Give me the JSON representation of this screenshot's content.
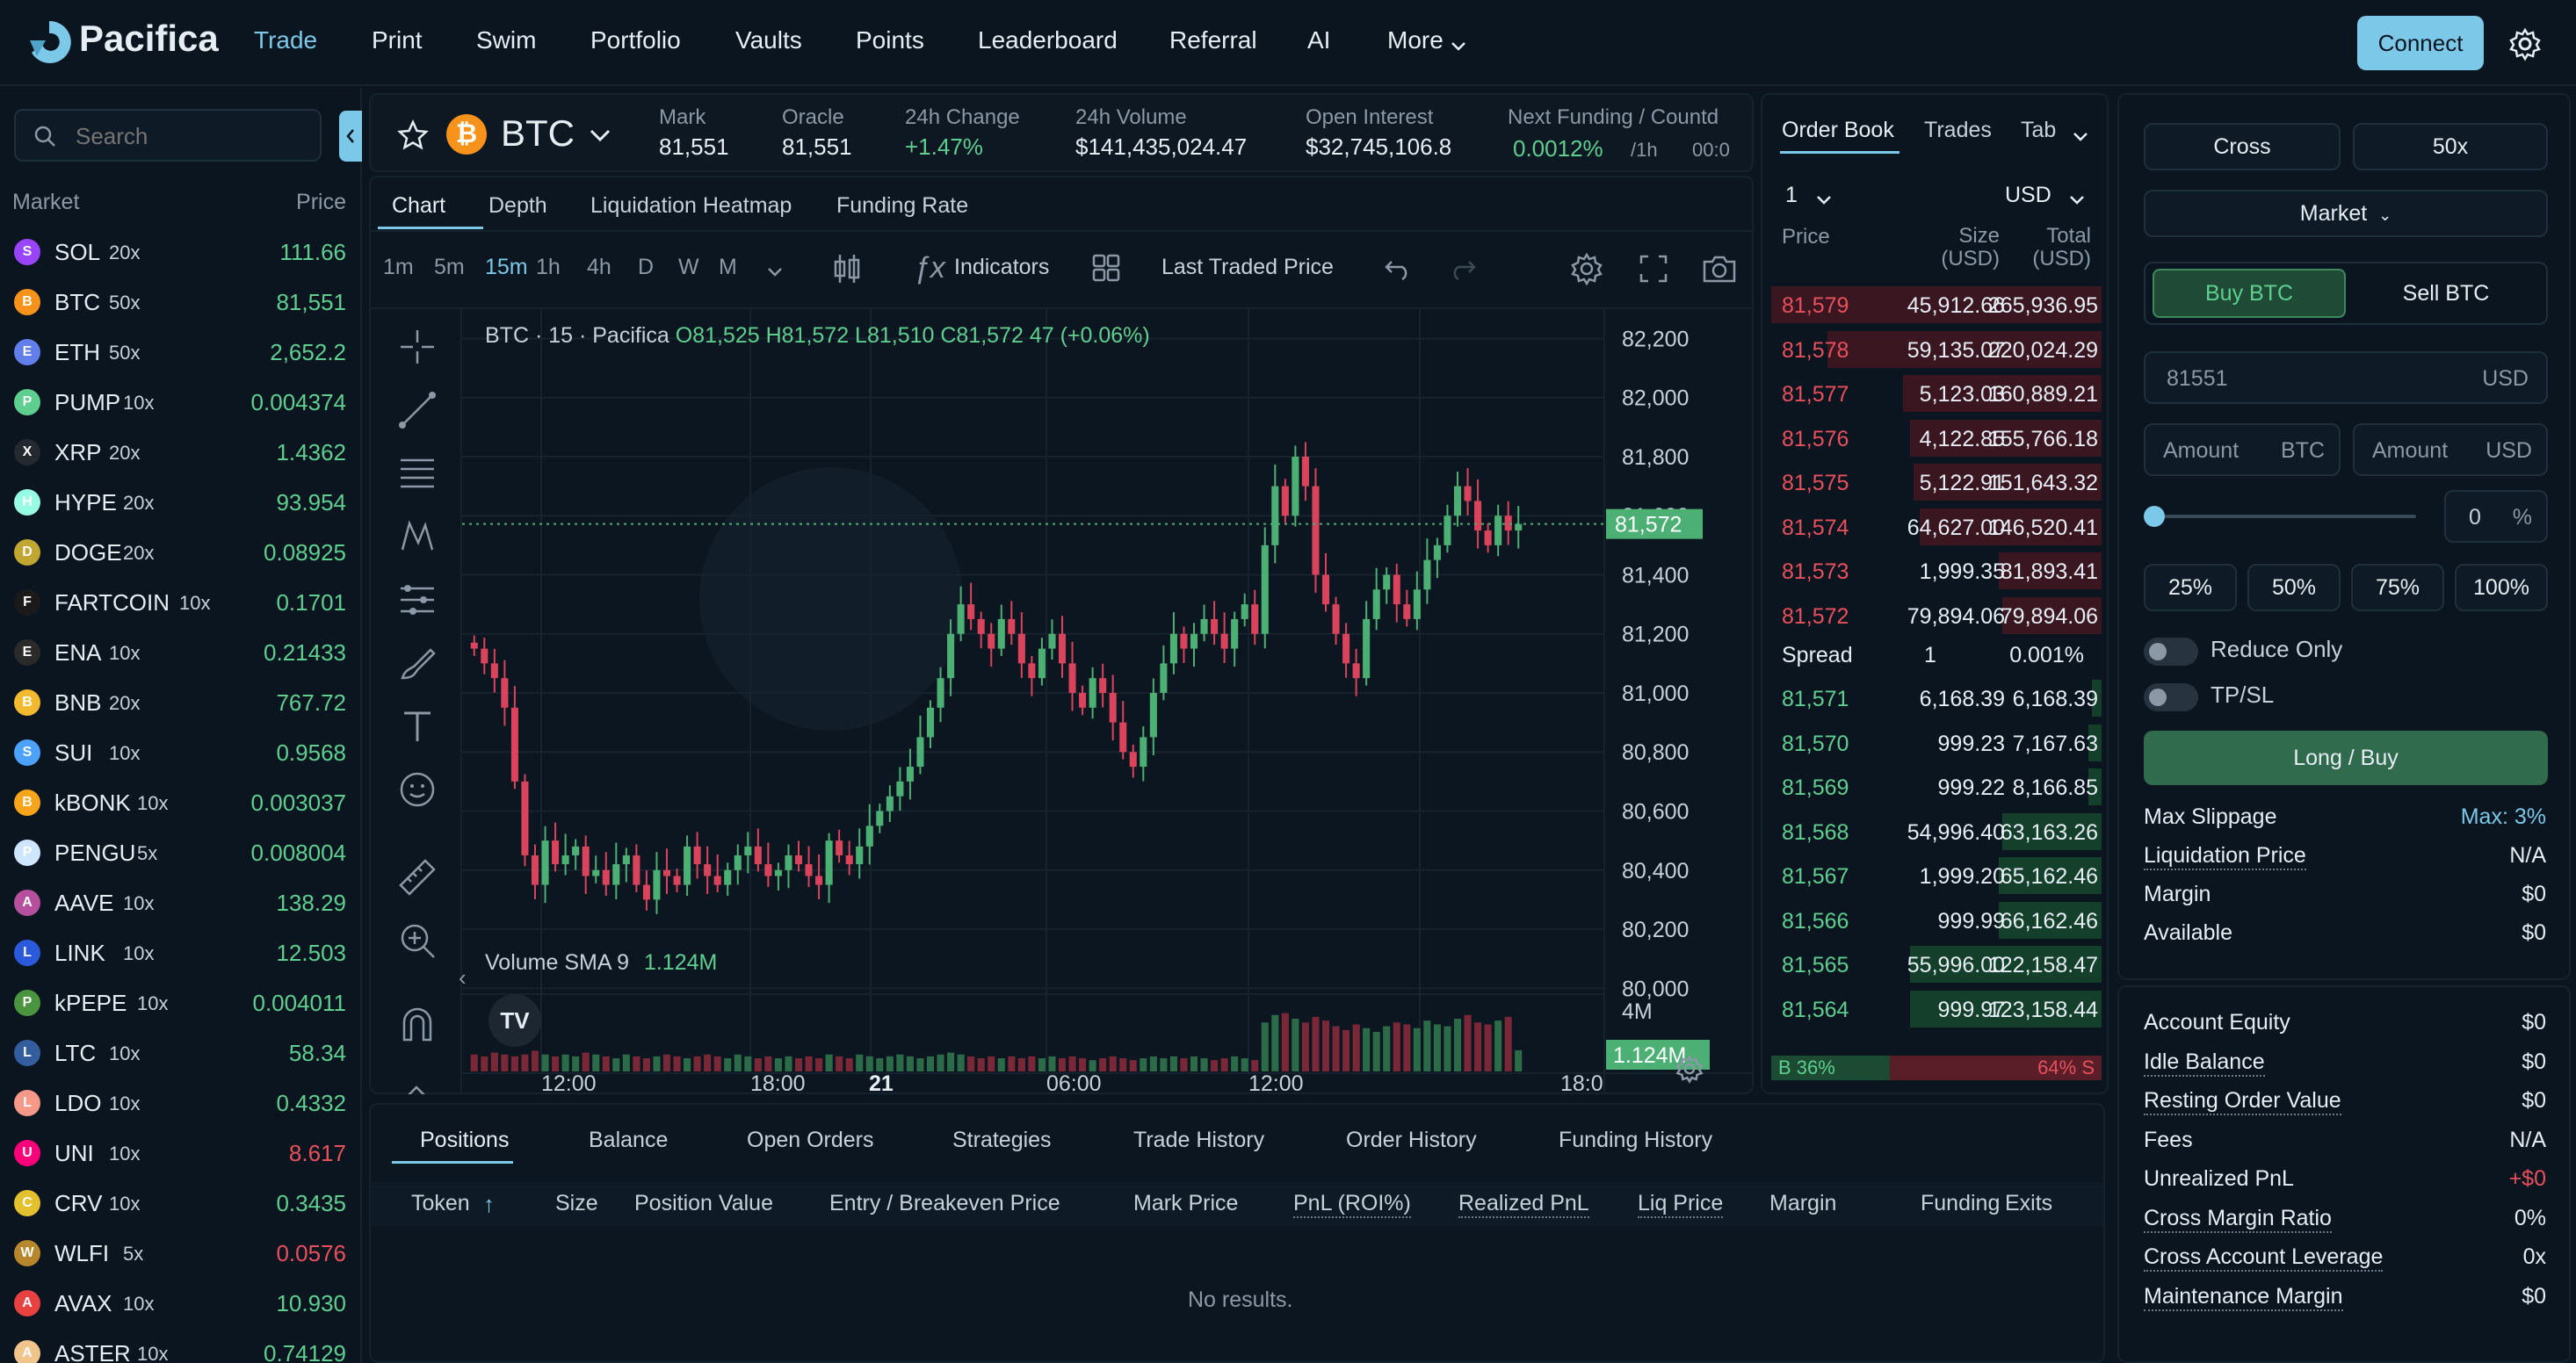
{
  "header": {
    "logo": "Pacifica",
    "nav": [
      "Trade",
      "Print",
      "Swim",
      "Portfolio",
      "Vaults",
      "Points",
      "Leaderboard",
      "Referral",
      "AI",
      "More"
    ],
    "connect_label": "Connect"
  },
  "markets": {
    "search_placeholder": "Search",
    "col_market": "Market",
    "col_price": "Price",
    "rows": [
      {
        "symbol": "SOL",
        "lev": "20x",
        "price": "111.66",
        "up": true,
        "color": "#9945ff"
      },
      {
        "symbol": "BTC",
        "lev": "50x",
        "price": "81,551",
        "up": true,
        "color": "#f7931a"
      },
      {
        "symbol": "ETH",
        "lev": "50x",
        "price": "2,652.2",
        "up": true,
        "color": "#627eea"
      },
      {
        "symbol": "PUMP",
        "lev": "10x",
        "price": "0.004374",
        "up": true,
        "color": "#5fcf8f"
      },
      {
        "symbol": "XRP",
        "lev": "20x",
        "price": "1.4362",
        "up": true,
        "color": "#23292f"
      },
      {
        "symbol": "HYPE",
        "lev": "20x",
        "price": "93.954",
        "up": true,
        "color": "#97fce4"
      },
      {
        "symbol": "DOGE",
        "lev": "20x",
        "price": "0.08925",
        "up": true,
        "color": "#c2a633"
      },
      {
        "symbol": "FARTCOIN",
        "lev": "10x",
        "price": "0.1701",
        "up": true,
        "color": "#1a1a1a"
      },
      {
        "symbol": "ENA",
        "lev": "10x",
        "price": "0.21433",
        "up": true,
        "color": "#2a2a2a"
      },
      {
        "symbol": "BNB",
        "lev": "20x",
        "price": "767.72",
        "up": true,
        "color": "#f3ba2f"
      },
      {
        "symbol": "SUI",
        "lev": "10x",
        "price": "0.9568",
        "up": true,
        "color": "#4da2ff"
      },
      {
        "symbol": "kBONK",
        "lev": "10x",
        "price": "0.003037",
        "up": true,
        "color": "#f8a51c"
      },
      {
        "symbol": "PENGU",
        "lev": "5x",
        "price": "0.008004",
        "up": true,
        "color": "#cfe6ff"
      },
      {
        "symbol": "AAVE",
        "lev": "10x",
        "price": "138.29",
        "up": true,
        "color": "#b6509e"
      },
      {
        "symbol": "LINK",
        "lev": "10x",
        "price": "12.503",
        "up": true,
        "color": "#2a5ada"
      },
      {
        "symbol": "kPEPE",
        "lev": "10x",
        "price": "0.004011",
        "up": true,
        "color": "#4c9540"
      },
      {
        "symbol": "LTC",
        "lev": "10x",
        "price": "58.34",
        "up": true,
        "color": "#345d9d"
      },
      {
        "symbol": "LDO",
        "lev": "10x",
        "price": "0.4332",
        "up": true,
        "color": "#f69988"
      },
      {
        "symbol": "UNI",
        "lev": "10x",
        "price": "8.617",
        "up": false,
        "color": "#ff007a"
      },
      {
        "symbol": "CRV",
        "lev": "10x",
        "price": "0.3435",
        "up": true,
        "color": "#e3c02d"
      },
      {
        "symbol": "WLFI",
        "lev": "5x",
        "price": "0.0576",
        "up": false,
        "color": "#b8862b"
      },
      {
        "symbol": "AVAX",
        "lev": "10x",
        "price": "10.930",
        "up": true,
        "color": "#e84142"
      },
      {
        "symbol": "ASTER",
        "lev": "10x",
        "price": "0.74129",
        "up": true,
        "color": "#f0c48a"
      }
    ]
  },
  "ticker": {
    "symbol": "BTC",
    "mark_label": "Mark",
    "mark": "81,551",
    "oracle_label": "Oracle",
    "oracle": "81,551",
    "change_label": "24h Change",
    "change": "+1.47%",
    "volume_label": "24h Volume",
    "volume": "$141,435,024.47",
    "oi_label": "Open Interest",
    "oi": "$32,745,106.8",
    "funding_label": "Next Funding / Countd",
    "funding": "0.0012%",
    "funding_period": "/1h",
    "countdown": "00:0"
  },
  "chart_tabs": [
    "Chart",
    "Depth",
    "Liquidation Heatmap",
    "Funding Rate"
  ],
  "toolbar": {
    "intervals": [
      "1m",
      "5m",
      "15m",
      "1h",
      "4h",
      "D",
      "W",
      "M"
    ],
    "active_interval": "15m",
    "indicators": "Indicators",
    "price_source": "Last Traded Price"
  },
  "chart_data": {
    "type": "candlestick",
    "legend": "BTC · 15 · Pacifica",
    "ohlc": "O81,525 H81,572 L81,510 C81,572 47 (+0.06%)",
    "yticks": [
      "82,200",
      "82,000",
      "81,800",
      "81,600",
      "81,400",
      "81,200",
      "81,000",
      "80,800",
      "80,600",
      "80,400",
      "80,200",
      "80,000"
    ],
    "ylim": [
      79980,
      82240
    ],
    "xticks": [
      "12:00",
      "18:00",
      "21",
      "06:00",
      "12:00",
      "18:0"
    ],
    "last_price": "81,572",
    "volume_label": "Volume SMA 9",
    "volume_value": "1.124M",
    "volume_axis": "4M",
    "closes": [
      81150,
      81100,
      81050,
      80950,
      80700,
      80450,
      80350,
      80500,
      80420,
      80450,
      80480,
      80380,
      80400,
      80350,
      80420,
      80450,
      80350,
      80300,
      80400,
      80380,
      80350,
      80480,
      80420,
      80380,
      80350,
      80400,
      80450,
      80480,
      80420,
      80380,
      80400,
      80450,
      80420,
      80380,
      80350,
      80500,
      80450,
      80420,
      80480,
      80550,
      80600,
      80650,
      80700,
      80750,
      80850,
      80950,
      81050,
      81200,
      81300,
      81250,
      81200,
      81150,
      81250,
      81200,
      81100,
      81050,
      81150,
      81200,
      81100,
      81000,
      80950,
      81050,
      81000,
      80900,
      80800,
      80750,
      80850,
      81000,
      81100,
      81200,
      81150,
      81200,
      81250,
      81200,
      81150,
      81250,
      81300,
      81200,
      81500,
      81700,
      81600,
      81800,
      81700,
      81400,
      81300,
      81200,
      81100,
      81050,
      81250,
      81350,
      81400,
      81300,
      81250,
      81350,
      81450,
      81500,
      81600,
      81700,
      81650,
      81550,
      81500,
      81600,
      81550,
      81572
    ],
    "volumes": [
      0.9,
      0.8,
      1.0,
      0.9,
      0.8,
      0.9,
      1.1,
      0.9,
      0.8,
      0.9,
      0.8,
      1.0,
      0.9,
      0.8,
      0.7,
      0.9,
      0.8,
      0.7,
      0.8,
      0.9,
      0.8,
      0.7,
      0.8,
      0.9,
      0.8,
      0.7,
      0.9,
      0.8,
      0.7,
      0.8,
      0.7,
      0.8,
      0.7,
      0.8,
      0.7,
      0.9,
      0.8,
      0.7,
      0.9,
      0.8,
      0.7,
      0.8,
      0.9,
      0.8,
      0.7,
      0.8,
      0.9,
      1.0,
      0.9,
      0.8,
      0.7,
      0.8,
      0.7,
      0.8,
      0.7,
      0.8,
      0.7,
      0.8,
      0.7,
      0.8,
      0.7,
      0.6,
      0.7,
      0.8,
      0.7,
      0.6,
      0.7,
      0.8,
      0.7,
      0.8,
      0.7,
      0.8,
      0.7,
      0.6,
      0.7,
      0.8,
      0.7,
      0.6,
      2.6,
      3.0,
      3.1,
      2.8,
      2.6,
      2.9,
      2.7,
      2.4,
      2.2,
      2.5,
      2.3,
      2.1,
      2.4,
      2.6,
      2.5,
      2.3,
      2.7,
      2.5,
      2.4,
      2.8,
      3.0,
      2.6,
      2.5,
      2.7,
      2.9,
      1.124
    ]
  },
  "orderbook": {
    "tabs": [
      "Order Book",
      "Trades",
      "Tab"
    ],
    "grouping": "1",
    "unit": "USD",
    "col_price": "Price",
    "col_size": "Size",
    "col_size_unit": "(USD)",
    "col_total": "Total",
    "col_total_unit": "(USD)",
    "asks": [
      {
        "price": "81,579",
        "size": "45,912.66",
        "total": "265,936.95",
        "depth": 1.0
      },
      {
        "price": "81,578",
        "size": "59,135.07",
        "total": "220,024.29",
        "depth": 0.83
      },
      {
        "price": "81,577",
        "size": "5,123.03",
        "total": "160,889.21",
        "depth": 0.6
      },
      {
        "price": "81,576",
        "size": "4,122.85",
        "total": "155,766.18",
        "depth": 0.58
      },
      {
        "price": "81,575",
        "size": "5,122.91",
        "total": "151,643.32",
        "depth": 0.57
      },
      {
        "price": "81,574",
        "size": "64,627.00",
        "total": "146,520.41",
        "depth": 0.55
      },
      {
        "price": "81,573",
        "size": "1,999.35",
        "total": "81,893.41",
        "depth": 0.31
      },
      {
        "price": "81,572",
        "size": "79,894.06",
        "total": "79,894.06",
        "depth": 0.3
      }
    ],
    "spread_label": "Spread",
    "spread": "1",
    "spread_pct": "0.001%",
    "bids": [
      {
        "price": "81,571",
        "size": "6,168.39",
        "total": "6,168.39",
        "depth": 0.03
      },
      {
        "price": "81,570",
        "size": "999.23",
        "total": "7,167.63",
        "depth": 0.04
      },
      {
        "price": "81,569",
        "size": "999.22",
        "total": "8,166.85",
        "depth": 0.04
      },
      {
        "price": "81,568",
        "size": "54,996.40",
        "total": "63,163.26",
        "depth": 0.3
      },
      {
        "price": "81,567",
        "size": "1,999.20",
        "total": "65,162.46",
        "depth": 0.31
      },
      {
        "price": "81,566",
        "size": "999.99",
        "total": "66,162.46",
        "depth": 0.31
      },
      {
        "price": "81,565",
        "size": "55,996.00",
        "total": "122,158.47",
        "depth": 0.58
      },
      {
        "price": "81,564",
        "size": "999.97",
        "total": "123,158.44",
        "depth": 0.58
      }
    ],
    "buy_ratio": "B 36%",
    "sell_ratio": "64% S",
    "buy_fraction": 0.36
  },
  "trade": {
    "margin_mode": "Cross",
    "leverage": "50x",
    "order_type": "Market",
    "buy_label": "Buy BTC",
    "sell_label": "Sell BTC",
    "price_value": "81551",
    "price_unit": "USD",
    "amount_placeholder": "Amount",
    "amount_unit_btc": "BTC",
    "amount_unit_usd": "USD",
    "slider_value": "0",
    "slider_fraction": 0,
    "pct_unit": "%",
    "presets": [
      "25%",
      "50%",
      "75%",
      "100%"
    ],
    "reduce_only": "Reduce Only",
    "tpsl": "TP/SL",
    "submit": "Long / Buy",
    "max_slippage_label": "Max Slippage",
    "max_slippage": "Max: 3%",
    "liq_price_label": "Liquidation Price",
    "liq_price": "N/A",
    "margin_label": "Margin",
    "margin": "$0",
    "available_label": "Available",
    "available": "$0"
  },
  "account": {
    "rows": [
      {
        "label": "Account Equity",
        "value": "$0",
        "dotted": false,
        "red": false
      },
      {
        "label": "Idle Balance",
        "value": "$0",
        "dotted": true,
        "red": false
      },
      {
        "label": "Resting Order Value",
        "value": "$0",
        "dotted": true,
        "red": false
      },
      {
        "label": "Fees",
        "value": "N/A",
        "dotted": false,
        "red": false
      },
      {
        "label": "Unrealized PnL",
        "value": "+$0",
        "dotted": false,
        "red": true
      },
      {
        "label": "Cross Margin Ratio",
        "value": "0%",
        "dotted": true,
        "red": false
      },
      {
        "label": "Cross Account Leverage",
        "value": "0x",
        "dotted": true,
        "red": false
      },
      {
        "label": "Maintenance Margin",
        "value": "$0",
        "dotted": true,
        "red": false
      }
    ]
  },
  "positions": {
    "tabs": [
      "Positions",
      "Balance",
      "Open Orders",
      "Strategies",
      "Trade History",
      "Order History",
      "Funding History"
    ],
    "columns": [
      "Token",
      "Size",
      "Position Value",
      "Entry / Breakeven Price",
      "Mark Price",
      "PnL (ROI%)",
      "Realized PnL",
      "Liq Price",
      "Margin",
      "Funding",
      "Exits"
    ],
    "empty": "No results."
  }
}
